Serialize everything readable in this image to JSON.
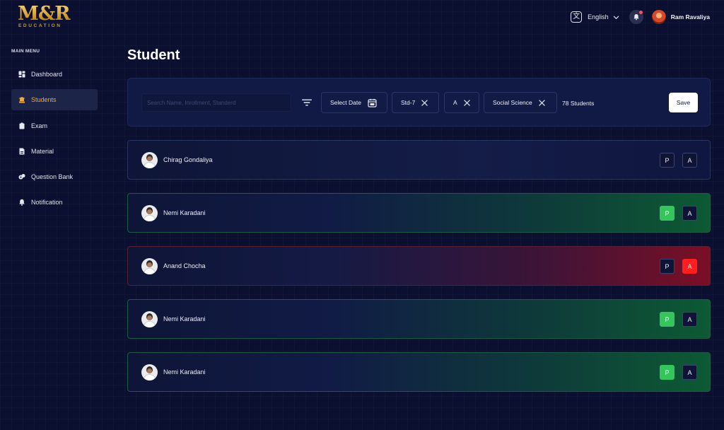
{
  "brand": {
    "logo_main": "M&R",
    "logo_sub": "EDUCATION"
  },
  "topbar": {
    "language": "English",
    "language_icon": "translate-icon",
    "notification_icon": "bell-icon",
    "user_name": "Ram Ravaliya"
  },
  "sidebar": {
    "title": "MAIN MENU",
    "items": [
      {
        "label": "Dashboard",
        "icon": "dashboard-icon",
        "active": false
      },
      {
        "label": "Students",
        "icon": "students-icon",
        "active": true
      },
      {
        "label": "Exam",
        "icon": "exam-icon",
        "active": false
      },
      {
        "label": "Material",
        "icon": "material-icon",
        "active": false
      },
      {
        "label": "Question Bank",
        "icon": "question-bank-icon",
        "active": false
      },
      {
        "label": "Notification",
        "icon": "bell-icon",
        "active": false
      }
    ]
  },
  "main": {
    "title": "Student",
    "filters": {
      "search_placeholder": "Search Name, Inrollment, Standerd",
      "date_label": "Select Date",
      "chips": [
        "Std-7",
        "A",
        "Social Science"
      ],
      "students_count": "78 Students",
      "save_label": "Save"
    },
    "attendance_labels": {
      "present": "P",
      "absent": "A"
    },
    "students": [
      {
        "name": "Chirag Gondaliya",
        "status": "none"
      },
      {
        "name": "Nemi Karadani",
        "status": "present"
      },
      {
        "name": "Anand Chocha",
        "status": "absent"
      },
      {
        "name": "Nemi Karadani",
        "status": "present"
      },
      {
        "name": "Nemi Karadani",
        "status": "present"
      }
    ]
  },
  "colors": {
    "background": "#0b1030",
    "accent": "#f2a93b",
    "present": "#36c45c",
    "absent": "#ff1f1f"
  }
}
